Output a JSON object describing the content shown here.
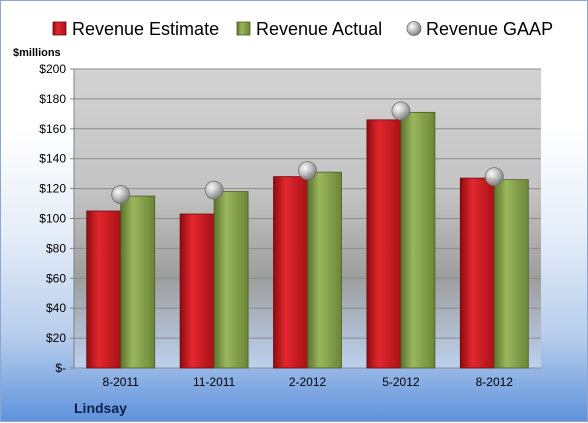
{
  "chart_data": {
    "type": "bar",
    "unit_label": "$millions",
    "company": "Lindsay",
    "categories": [
      "8-2011",
      "11-2011",
      "2-2012",
      "5-2012",
      "8-2012"
    ],
    "series": [
      {
        "name": "Revenue Estimate",
        "kind": "bar",
        "color": "#c8161d",
        "values": [
          105,
          103,
          128,
          166,
          127
        ]
      },
      {
        "name": "Revenue Actual",
        "kind": "bar",
        "color": "#7f9b45",
        "values": [
          115,
          118,
          131,
          171,
          126
        ]
      },
      {
        "name": "Revenue GAAP",
        "kind": "marker",
        "color": "#a6a6a6",
        "values": [
          116,
          119,
          132,
          172,
          128
        ]
      }
    ],
    "ylim": [
      0,
      200
    ],
    "yticks": [
      {
        "value": 200,
        "label": "$200"
      },
      {
        "value": 180,
        "label": "$180"
      },
      {
        "value": 160,
        "label": "$160"
      },
      {
        "value": 140,
        "label": "$140"
      },
      {
        "value": 120,
        "label": "$120"
      },
      {
        "value": 100,
        "label": "$100"
      },
      {
        "value": 80,
        "label": "$80"
      },
      {
        "value": 60,
        "label": "$60"
      },
      {
        "value": 40,
        "label": "$40"
      },
      {
        "value": 20,
        "label": "$20"
      },
      {
        "value": 0,
        "label": "$-"
      }
    ],
    "grid": true,
    "legend_position": "top"
  }
}
